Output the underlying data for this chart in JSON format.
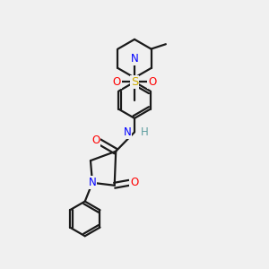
{
  "bg_color": "#f0f0f0",
  "bond_color": "#1a1a1a",
  "N_color": "#0000ff",
  "O_color": "#ff0000",
  "S_color": "#ccaa00",
  "H_color": "#5f9ea0",
  "line_width": 1.6,
  "figsize": [
    3.0,
    3.0
  ],
  "dpi": 100,
  "xlim": [
    0,
    10
  ],
  "ylim": [
    0,
    10
  ]
}
